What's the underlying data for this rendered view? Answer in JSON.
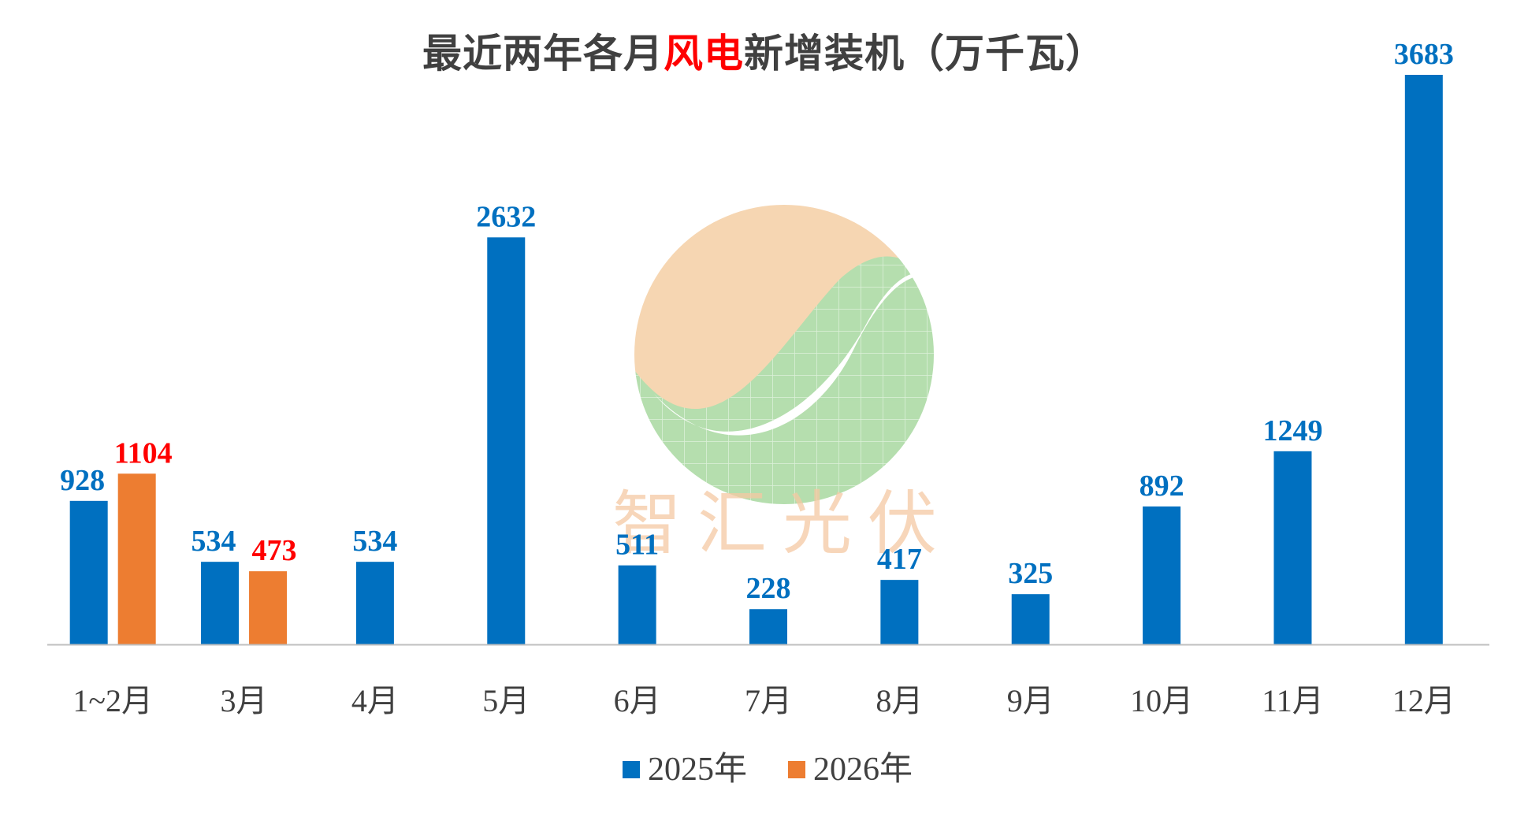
{
  "title": {
    "prefix": "最近两年各月",
    "highlight": "风电",
    "suffix": "新增装机（万千瓦）"
  },
  "watermark": {
    "text": "智汇光伏",
    "logo_colors": {
      "top": "#f5cfa5",
      "bottom": "#a8d9a0",
      "swoosh": "#ffffff"
    }
  },
  "colors": {
    "series_2025": "#0070c0",
    "series_2026": "#ed7d31",
    "label_2025": "#0070c0",
    "label_2026": "#ff0000",
    "axis": "#bfbfbf",
    "text": "#404040"
  },
  "chart_data": {
    "type": "bar",
    "categories": [
      "1~2月",
      "3月",
      "4月",
      "5月",
      "6月",
      "7月",
      "8月",
      "9月",
      "10月",
      "11月",
      "12月"
    ],
    "series": [
      {
        "name": "2025年",
        "values": [
          928,
          534,
          534,
          2632,
          511,
          228,
          417,
          325,
          892,
          1249,
          3683
        ]
      },
      {
        "name": "2026年",
        "values": [
          1104,
          473,
          null,
          null,
          null,
          null,
          null,
          null,
          null,
          null,
          null
        ]
      }
    ],
    "ylim": [
      0,
      3683
    ],
    "grid": false,
    "data_labels": true,
    "legend_position": "bottom"
  }
}
